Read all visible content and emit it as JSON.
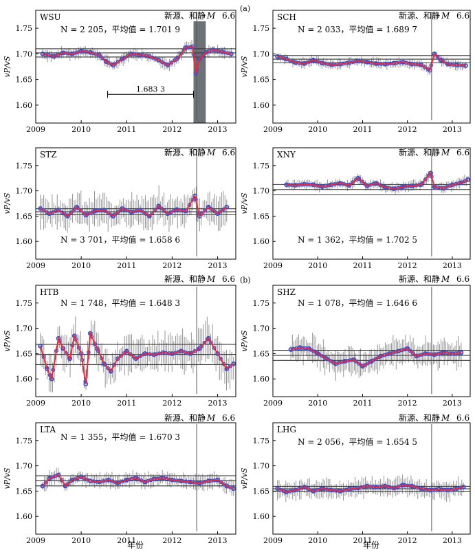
{
  "figure": {
    "x_axis_label": "年份",
    "group_labels": [
      "(a)",
      "(b)"
    ],
    "colors": {
      "scatter": "#3a4fd0",
      "smooth": "#e8283c",
      "error_bar": "#6f6f6f",
      "reference_line": "#333333",
      "shade": "#6d7277"
    }
  },
  "chart_data": [
    {
      "type": "scatter",
      "station": "WSU",
      "event_label": "新源、和静",
      "magnitude_label": "6.6",
      "stats_text": "N = 2 205，平均值 = 1.701 9",
      "ylabel": "vP/vS",
      "xlim": [
        2009,
        2013.4
      ],
      "ylim": [
        1.565,
        1.785
      ],
      "xticks": [
        "2009",
        "2010",
        "2011",
        "2012",
        "2013"
      ],
      "yticks": [
        "1.60",
        "1.65",
        "1.70",
        "1.75"
      ],
      "mean": 1.7019,
      "band": 0.008,
      "event_year": 2012.54,
      "error": 0.009,
      "shade": [
        2012.47,
        2012.74
      ],
      "span": {
        "x1": 2010.58,
        "x2": 2012.47,
        "y": 1.621,
        "label": "1.683 3"
      },
      "series": [
        {
          "x": 2009.15,
          "y": 1.7
        },
        {
          "x": 2009.4,
          "y": 1.695
        },
        {
          "x": 2009.6,
          "y": 1.702
        },
        {
          "x": 2009.8,
          "y": 1.7
        },
        {
          "x": 2010.0,
          "y": 1.705
        },
        {
          "x": 2010.2,
          "y": 1.703
        },
        {
          "x": 2010.4,
          "y": 1.697
        },
        {
          "x": 2010.55,
          "y": 1.685
        },
        {
          "x": 2010.7,
          "y": 1.678
        },
        {
          "x": 2010.9,
          "y": 1.69
        },
        {
          "x": 2011.1,
          "y": 1.7
        },
        {
          "x": 2011.3,
          "y": 1.698
        },
        {
          "x": 2011.5,
          "y": 1.695
        },
        {
          "x": 2011.7,
          "y": 1.688
        },
        {
          "x": 2011.9,
          "y": 1.678
        },
        {
          "x": 2012.1,
          "y": 1.69
        },
        {
          "x": 2012.3,
          "y": 1.712
        },
        {
          "x": 2012.45,
          "y": 1.714
        },
        {
          "x": 2012.52,
          "y": 1.662
        },
        {
          "x": 2012.6,
          "y": 1.69
        },
        {
          "x": 2012.75,
          "y": 1.703
        },
        {
          "x": 2012.9,
          "y": 1.708
        },
        {
          "x": 2013.1,
          "y": 1.704
        },
        {
          "x": 2013.3,
          "y": 1.7
        }
      ]
    },
    {
      "type": "scatter",
      "station": "SCH",
      "event_label": "新源、和静",
      "magnitude_label": "6.6",
      "stats_text": "N = 2 033，平均值 = 1.689 7",
      "ylabel": "vP/vS",
      "xlim": [
        2009,
        2013.4
      ],
      "ylim": [
        1.565,
        1.785
      ],
      "xticks": [
        "2009",
        "2010",
        "2011",
        "2012",
        "2013"
      ],
      "yticks": [
        "1.60",
        "1.65",
        "1.70",
        "1.75"
      ],
      "mean": 1.6897,
      "band": 0.007,
      "event_year": 2012.54,
      "error": 0.008,
      "series": [
        {
          "x": 2009.1,
          "y": 1.695
        },
        {
          "x": 2009.3,
          "y": 1.69
        },
        {
          "x": 2009.5,
          "y": 1.683
        },
        {
          "x": 2009.7,
          "y": 1.681
        },
        {
          "x": 2009.9,
          "y": 1.688
        },
        {
          "x": 2010.1,
          "y": 1.682
        },
        {
          "x": 2010.3,
          "y": 1.679
        },
        {
          "x": 2010.5,
          "y": 1.68
        },
        {
          "x": 2010.7,
          "y": 1.683
        },
        {
          "x": 2010.9,
          "y": 1.686
        },
        {
          "x": 2011.1,
          "y": 1.684
        },
        {
          "x": 2011.3,
          "y": 1.681
        },
        {
          "x": 2011.5,
          "y": 1.68
        },
        {
          "x": 2011.7,
          "y": 1.682
        },
        {
          "x": 2011.9,
          "y": 1.684
        },
        {
          "x": 2012.1,
          "y": 1.68
        },
        {
          "x": 2012.3,
          "y": 1.679
        },
        {
          "x": 2012.5,
          "y": 1.668
        },
        {
          "x": 2012.6,
          "y": 1.7
        },
        {
          "x": 2012.75,
          "y": 1.688
        },
        {
          "x": 2012.9,
          "y": 1.68
        },
        {
          "x": 2013.1,
          "y": 1.678
        },
        {
          "x": 2013.3,
          "y": 1.677
        }
      ]
    },
    {
      "type": "scatter",
      "station": "STZ",
      "event_label": "新源、和静",
      "magnitude_label": "6.6",
      "stats_text": "N = 3 701，平均值 = 1.658 6",
      "ylabel": "vP/vS",
      "xlim": [
        2009,
        2013.4
      ],
      "ylim": [
        1.565,
        1.785
      ],
      "xticks": [
        "2009",
        "2010",
        "2011",
        "2012",
        "2013"
      ],
      "yticks": [
        "1.60",
        "1.65",
        "1.70",
        "1.75"
      ],
      "mean": 1.6586,
      "band": 0.006,
      "event_year": 2012.54,
      "error": 0.025,
      "series": [
        {
          "x": 2009.1,
          "y": 1.665
        },
        {
          "x": 2009.3,
          "y": 1.655
        },
        {
          "x": 2009.5,
          "y": 1.662
        },
        {
          "x": 2009.7,
          "y": 1.65
        },
        {
          "x": 2009.9,
          "y": 1.668
        },
        {
          "x": 2010.1,
          "y": 1.652
        },
        {
          "x": 2010.3,
          "y": 1.66
        },
        {
          "x": 2010.5,
          "y": 1.662
        },
        {
          "x": 2010.7,
          "y": 1.65
        },
        {
          "x": 2010.9,
          "y": 1.665
        },
        {
          "x": 2011.1,
          "y": 1.658
        },
        {
          "x": 2011.3,
          "y": 1.662
        },
        {
          "x": 2011.5,
          "y": 1.65
        },
        {
          "x": 2011.7,
          "y": 1.67
        },
        {
          "x": 2011.9,
          "y": 1.655
        },
        {
          "x": 2012.1,
          "y": 1.663
        },
        {
          "x": 2012.3,
          "y": 1.66
        },
        {
          "x": 2012.5,
          "y": 1.69
        },
        {
          "x": 2012.6,
          "y": 1.65
        },
        {
          "x": 2012.8,
          "y": 1.668
        },
        {
          "x": 2013.0,
          "y": 1.655
        },
        {
          "x": 2013.2,
          "y": 1.668
        }
      ]
    },
    {
      "type": "scatter",
      "station": "XNY",
      "event_label": "新源、和静",
      "magnitude_label": "6.6",
      "stats_text": "N = 1 362，平均值 = 1.702 5",
      "ylabel": "vP/vS",
      "xlim": [
        2009,
        2013.4
      ],
      "ylim": [
        1.565,
        1.785
      ],
      "xticks": [
        "2009",
        "2010",
        "2011",
        "2012",
        "2013"
      ],
      "yticks": [
        "1.60",
        "1.65",
        "1.70",
        "1.75"
      ],
      "mean": 1.7025,
      "band": 0.01,
      "event_year": 2012.54,
      "error": 0.008,
      "series": [
        {
          "x": 2009.3,
          "y": 1.712
        },
        {
          "x": 2009.5,
          "y": 1.711
        },
        {
          "x": 2009.7,
          "y": 1.713
        },
        {
          "x": 2009.9,
          "y": 1.712
        },
        {
          "x": 2010.1,
          "y": 1.708
        },
        {
          "x": 2010.3,
          "y": 1.712
        },
        {
          "x": 2010.5,
          "y": 1.715
        },
        {
          "x": 2010.7,
          "y": 1.711
        },
        {
          "x": 2010.9,
          "y": 1.725
        },
        {
          "x": 2011.1,
          "y": 1.71
        },
        {
          "x": 2011.3,
          "y": 1.715
        },
        {
          "x": 2011.5,
          "y": 1.707
        },
        {
          "x": 2011.7,
          "y": 1.704
        },
        {
          "x": 2011.9,
          "y": 1.708
        },
        {
          "x": 2012.1,
          "y": 1.71
        },
        {
          "x": 2012.3,
          "y": 1.712
        },
        {
          "x": 2012.52,
          "y": 1.735
        },
        {
          "x": 2012.6,
          "y": 1.708
        },
        {
          "x": 2012.8,
          "y": 1.705
        },
        {
          "x": 2013.0,
          "y": 1.712
        },
        {
          "x": 2013.2,
          "y": 1.716
        },
        {
          "x": 2013.35,
          "y": 1.722
        }
      ]
    },
    {
      "type": "scatter",
      "station": "HTB",
      "event_label": "新源、和静",
      "magnitude_label": "6.6",
      "stats_text": "N = 1 748，平均值 = 1.648 3",
      "ylabel": "vP/vS",
      "xlim": [
        2009,
        2013.4
      ],
      "ylim": [
        1.565,
        1.785
      ],
      "xticks": [
        "2009",
        "2010",
        "2011",
        "2012",
        "2013"
      ],
      "yticks": [
        "1.60",
        "1.65",
        "1.70",
        "1.75"
      ],
      "mean": 1.6483,
      "band": 0.02,
      "event_year": 2012.54,
      "error": 0.03,
      "series": [
        {
          "x": 2009.1,
          "y": 1.665
        },
        {
          "x": 2009.25,
          "y": 1.62
        },
        {
          "x": 2009.35,
          "y": 1.6
        },
        {
          "x": 2009.5,
          "y": 1.68
        },
        {
          "x": 2009.6,
          "y": 1.66
        },
        {
          "x": 2009.75,
          "y": 1.64
        },
        {
          "x": 2009.85,
          "y": 1.685
        },
        {
          "x": 2010.0,
          "y": 1.65
        },
        {
          "x": 2010.1,
          "y": 1.59
        },
        {
          "x": 2010.2,
          "y": 1.69
        },
        {
          "x": 2010.35,
          "y": 1.66
        },
        {
          "x": 2010.5,
          "y": 1.63
        },
        {
          "x": 2010.65,
          "y": 1.615
        },
        {
          "x": 2010.8,
          "y": 1.64
        },
        {
          "x": 2011.0,
          "y": 1.655
        },
        {
          "x": 2011.2,
          "y": 1.64
        },
        {
          "x": 2011.4,
          "y": 1.65
        },
        {
          "x": 2011.6,
          "y": 1.648
        },
        {
          "x": 2011.8,
          "y": 1.652
        },
        {
          "x": 2012.0,
          "y": 1.65
        },
        {
          "x": 2012.2,
          "y": 1.655
        },
        {
          "x": 2012.4,
          "y": 1.65
        },
        {
          "x": 2012.6,
          "y": 1.66
        },
        {
          "x": 2012.8,
          "y": 1.68
        },
        {
          "x": 2013.0,
          "y": 1.65
        },
        {
          "x": 2013.2,
          "y": 1.62
        },
        {
          "x": 2013.35,
          "y": 1.63
        }
      ]
    },
    {
      "type": "scatter",
      "station": "SHZ",
      "event_label": "新源、和静",
      "magnitude_label": "6.6",
      "stats_text": "N = 1 078，平均值 = 1.646 6",
      "ylabel": "vP/vS",
      "xlim": [
        2009,
        2013.4
      ],
      "ylim": [
        1.565,
        1.785
      ],
      "xticks": [
        "2009",
        "2010",
        "2011",
        "2012",
        "2013"
      ],
      "yticks": [
        "1.60",
        "1.65",
        "1.70",
        "1.75"
      ],
      "mean": 1.6466,
      "band": 0.01,
      "event_year": 2012.54,
      "error": 0.022,
      "series": [
        {
          "x": 2009.4,
          "y": 1.658
        },
        {
          "x": 2009.6,
          "y": 1.662
        },
        {
          "x": 2009.8,
          "y": 1.66
        },
        {
          "x": 2010.0,
          "y": 1.65
        },
        {
          "x": 2010.2,
          "y": 1.64
        },
        {
          "x": 2010.4,
          "y": 1.63
        },
        {
          "x": 2010.6,
          "y": 1.635
        },
        {
          "x": 2010.8,
          "y": 1.638
        },
        {
          "x": 2011.0,
          "y": 1.625
        },
        {
          "x": 2011.2,
          "y": 1.635
        },
        {
          "x": 2011.4,
          "y": 1.645
        },
        {
          "x": 2011.6,
          "y": 1.65
        },
        {
          "x": 2011.8,
          "y": 1.655
        },
        {
          "x": 2012.0,
          "y": 1.66
        },
        {
          "x": 2012.2,
          "y": 1.645
        },
        {
          "x": 2012.4,
          "y": 1.65
        },
        {
          "x": 2012.6,
          "y": 1.648
        },
        {
          "x": 2012.8,
          "y": 1.652
        },
        {
          "x": 2013.0,
          "y": 1.65
        },
        {
          "x": 2013.2,
          "y": 1.652
        }
      ]
    },
    {
      "type": "scatter",
      "station": "LTA",
      "event_label": "新源、和静",
      "magnitude_label": "6.6",
      "stats_text": "N = 1 355，平均值 = 1.670 3",
      "ylabel": "vP/vS",
      "xlim": [
        2009,
        2013.4
      ],
      "ylim": [
        1.565,
        1.785
      ],
      "xticks": [
        "2009",
        "2010",
        "2011",
        "2012",
        "2013"
      ],
      "yticks": [
        "1.60",
        "1.65",
        "1.70",
        "1.75"
      ],
      "mean": 1.6703,
      "band": 0.01,
      "event_year": 2012.54,
      "error": 0.012,
      "series": [
        {
          "x": 2009.15,
          "y": 1.66
        },
        {
          "x": 2009.3,
          "y": 1.675
        },
        {
          "x": 2009.5,
          "y": 1.682
        },
        {
          "x": 2009.65,
          "y": 1.66
        },
        {
          "x": 2009.8,
          "y": 1.672
        },
        {
          "x": 2010.0,
          "y": 1.678
        },
        {
          "x": 2010.2,
          "y": 1.67
        },
        {
          "x": 2010.4,
          "y": 1.668
        },
        {
          "x": 2010.6,
          "y": 1.672
        },
        {
          "x": 2010.8,
          "y": 1.666
        },
        {
          "x": 2011.0,
          "y": 1.672
        },
        {
          "x": 2011.2,
          "y": 1.676
        },
        {
          "x": 2011.4,
          "y": 1.668
        },
        {
          "x": 2011.6,
          "y": 1.674
        },
        {
          "x": 2011.8,
          "y": 1.676
        },
        {
          "x": 2012.0,
          "y": 1.672
        },
        {
          "x": 2012.2,
          "y": 1.67
        },
        {
          "x": 2012.4,
          "y": 1.668
        },
        {
          "x": 2012.6,
          "y": 1.666
        },
        {
          "x": 2012.8,
          "y": 1.67
        },
        {
          "x": 2013.0,
          "y": 1.672
        },
        {
          "x": 2013.2,
          "y": 1.66
        },
        {
          "x": 2013.35,
          "y": 1.655
        }
      ]
    },
    {
      "type": "scatter",
      "station": "LHG",
      "event_label": "新源、和静",
      "magnitude_label": "6.6",
      "stats_text": "N = 2 056，平均值 = 1.654 5",
      "ylabel": "vP/vS",
      "xlim": [
        2009,
        2013.4
      ],
      "ylim": [
        1.565,
        1.785
      ],
      "xticks": [
        "2009",
        "2010",
        "2011",
        "2012",
        "2013"
      ],
      "yticks": [
        "1.60",
        "1.65",
        "1.70",
        "1.75"
      ],
      "mean": 1.6545,
      "band": 0.005,
      "event_year": 2012.54,
      "error": 0.015,
      "series": [
        {
          "x": 2009.1,
          "y": 1.655
        },
        {
          "x": 2009.3,
          "y": 1.648
        },
        {
          "x": 2009.5,
          "y": 1.652
        },
        {
          "x": 2009.7,
          "y": 1.658
        },
        {
          "x": 2009.9,
          "y": 1.65
        },
        {
          "x": 2010.1,
          "y": 1.655
        },
        {
          "x": 2010.3,
          "y": 1.652
        },
        {
          "x": 2010.5,
          "y": 1.65
        },
        {
          "x": 2010.7,
          "y": 1.654
        },
        {
          "x": 2010.9,
          "y": 1.656
        },
        {
          "x": 2011.1,
          "y": 1.66
        },
        {
          "x": 2011.3,
          "y": 1.658
        },
        {
          "x": 2011.5,
          "y": 1.66
        },
        {
          "x": 2011.7,
          "y": 1.656
        },
        {
          "x": 2011.9,
          "y": 1.662
        },
        {
          "x": 2012.1,
          "y": 1.66
        },
        {
          "x": 2012.3,
          "y": 1.655
        },
        {
          "x": 2012.5,
          "y": 1.652
        },
        {
          "x": 2012.7,
          "y": 1.654
        },
        {
          "x": 2012.9,
          "y": 1.652
        },
        {
          "x": 2013.1,
          "y": 1.655
        },
        {
          "x": 2013.25,
          "y": 1.658
        }
      ]
    }
  ]
}
